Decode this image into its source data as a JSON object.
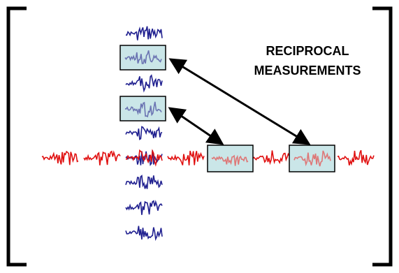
{
  "annotation": {
    "line1": "RECIPROCAL",
    "line2": "MEASUREMENTS"
  },
  "colors": {
    "vertical_trace": "#1f1f8f",
    "horizontal_trace": "#e01010",
    "highlight_box_fill": "#b8dde0",
    "highlight_box_stroke": "#000000",
    "bracket": "#000000",
    "arrow": "#000000"
  }
}
